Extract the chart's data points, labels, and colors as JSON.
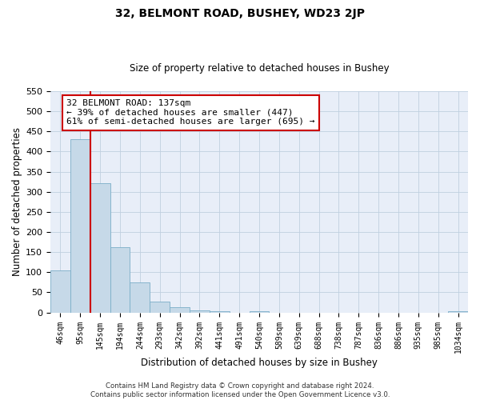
{
  "title": "32, BELMONT ROAD, BUSHEY, WD23 2JP",
  "subtitle": "Size of property relative to detached houses in Bushey",
  "xlabel": "Distribution of detached houses by size in Bushey",
  "ylabel": "Number of detached properties",
  "bin_labels": [
    "46sqm",
    "95sqm",
    "145sqm",
    "194sqm",
    "244sqm",
    "293sqm",
    "342sqm",
    "392sqm",
    "441sqm",
    "491sqm",
    "540sqm",
    "589sqm",
    "639sqm",
    "688sqm",
    "738sqm",
    "787sqm",
    "836sqm",
    "886sqm",
    "935sqm",
    "985sqm",
    "1034sqm"
  ],
  "bar_heights": [
    105,
    430,
    322,
    162,
    75,
    27,
    13,
    5,
    4,
    0,
    3,
    0,
    0,
    0,
    0,
    0,
    0,
    0,
    0,
    0,
    4
  ],
  "bar_color": "#c6d9e8",
  "bar_edgecolor": "#7aaec8",
  "ylim": [
    0,
    550
  ],
  "yticks": [
    0,
    50,
    100,
    150,
    200,
    250,
    300,
    350,
    400,
    450,
    500,
    550
  ],
  "vline_color": "#cc0000",
  "annotation_title": "32 BELMONT ROAD: 137sqm",
  "annotation_line1": "← 39% of detached houses are smaller (447)",
  "annotation_line2": "61% of semi-detached houses are larger (695) →",
  "annotation_box_facecolor": "#ffffff",
  "annotation_box_edgecolor": "#cc0000",
  "footer_line1": "Contains HM Land Registry data © Crown copyright and database right 2024.",
  "footer_line2": "Contains public sector information licensed under the Open Government Licence v3.0.",
  "plot_bg_color": "#e8eef8"
}
